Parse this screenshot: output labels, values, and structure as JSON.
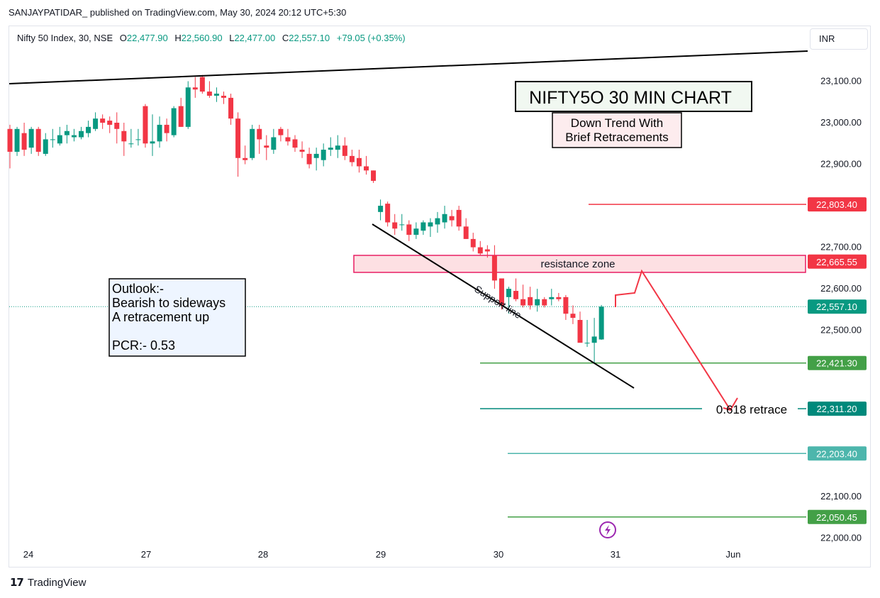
{
  "header": {
    "published": "SANJAYPATIDAR_ published on TradingView.com, May 30, 2024 20:12 UTC+5:30"
  },
  "legend": {
    "symbol": "Nifty 50 Index, 30, NSE",
    "o_label": "O",
    "o": "22,477.90",
    "h_label": "H",
    "h": "22,560.90",
    "l_label": "L",
    "l": "22,477.00",
    "c_label": "C",
    "c": "22,557.10",
    "change": "+79.05 (+0.35%)"
  },
  "currency": "INR",
  "brand": "TradingView",
  "colors": {
    "up": "#089981",
    "down": "#f23645",
    "axis_text": "#131722",
    "resistance_fill": "#fde0e3",
    "resistance_border": "#e91e63"
  },
  "chart_data": {
    "type": "candlestick",
    "symbol": "Nifty 50 Index",
    "interval": "30",
    "y_ticks": [
      "23,100.00",
      "23,000.00",
      "22,900.00",
      "22,700.00",
      "22,600.00",
      "22,500.00",
      "22,100.00",
      "22,000.00"
    ],
    "y_tick_values": [
      23100,
      23000,
      22900,
      22700,
      22600,
      22500,
      22100,
      22000
    ],
    "x_ticks": [
      "24",
      "27",
      "28",
      "29",
      "30",
      "31",
      "Jun"
    ],
    "ylim": [
      21970,
      23210
    ],
    "candles": [
      [
        22985,
        22995,
        22890,
        22930
      ],
      [
        22930,
        22990,
        22920,
        22985
      ],
      [
        22975,
        23000,
        22920,
        22935
      ],
      [
        22940,
        22990,
        22925,
        22985
      ],
      [
        22985,
        22990,
        22920,
        22930
      ],
      [
        22925,
        22975,
        22920,
        22960
      ],
      [
        22960,
        22985,
        22940,
        22960
      ],
      [
        22950,
        22990,
        22945,
        22970
      ],
      [
        22970,
        22995,
        22950,
        22980
      ],
      [
        22965,
        22985,
        22955,
        22970
      ],
      [
        22965,
        22990,
        22960,
        22980
      ],
      [
        22975,
        23005,
        22965,
        22990
      ],
      [
        22985,
        23025,
        22980,
        23010
      ],
      [
        23010,
        23020,
        22985,
        23000
      ],
      [
        23005,
        23015,
        22975,
        22995
      ],
      [
        23000,
        23025,
        22950,
        22985
      ],
      [
        22980,
        23000,
        22920,
        22955
      ],
      [
        22950,
        22985,
        22940,
        22950
      ],
      [
        22960,
        22985,
        22945,
        22960
      ],
      [
        23040,
        23045,
        22940,
        22950
      ],
      [
        22950,
        23020,
        22920,
        22955
      ],
      [
        22955,
        23015,
        22940,
        22995
      ],
      [
        22995,
        23010,
        22955,
        22975
      ],
      [
        22970,
        23040,
        22965,
        23035
      ],
      [
        23040,
        23060,
        22990,
        22990
      ],
      [
        22990,
        23100,
        22985,
        23085
      ],
      [
        23085,
        23110,
        23060,
        23080
      ],
      [
        23110,
        23115,
        23070,
        23075
      ],
      [
        23075,
        23100,
        23060,
        23065
      ],
      [
        23065,
        23085,
        23050,
        23070
      ],
      [
        23065,
        23075,
        23045,
        23060
      ],
      [
        23060,
        23070,
        22995,
        23010
      ],
      [
        23010,
        23025,
        22870,
        22915
      ],
      [
        22915,
        22945,
        22900,
        22910
      ],
      [
        22915,
        22995,
        22910,
        22985
      ],
      [
        22985,
        22995,
        22925,
        22960
      ],
      [
        22945,
        22970,
        22910,
        22940
      ],
      [
        22935,
        22985,
        22925,
        22965
      ],
      [
        22985,
        22990,
        22955,
        22970
      ],
      [
        22965,
        22985,
        22945,
        22955
      ],
      [
        22960,
        22970,
        22930,
        22940
      ],
      [
        22935,
        22955,
        22915,
        22930
      ],
      [
        22925,
        22940,
        22890,
        22900
      ],
      [
        22915,
        22940,
        22885,
        22925
      ],
      [
        22910,
        22950,
        22895,
        22935
      ],
      [
        22935,
        22965,
        22920,
        22940
      ],
      [
        22935,
        22970,
        22915,
        22945
      ],
      [
        22945,
        22965,
        22910,
        22920
      ],
      [
        22920,
        22935,
        22895,
        22905
      ],
      [
        22915,
        22935,
        22880,
        22895
      ],
      [
        22895,
        22920,
        22875,
        22885
      ],
      [
        22885,
        22885,
        22855,
        22860
      ],
      [
        22785,
        22815,
        22765,
        22800
      ],
      [
        22805,
        22810,
        22750,
        22760
      ],
      [
        22760,
        22780,
        22730,
        22745
      ],
      [
        22755,
        22780,
        22740,
        22755
      ],
      [
        22755,
        22765,
        22715,
        22730
      ],
      [
        22730,
        22760,
        22720,
        22745
      ],
      [
        22740,
        22765,
        22730,
        22760
      ],
      [
        22750,
        22770,
        22725,
        22760
      ],
      [
        22755,
        22785,
        22735,
        22770
      ],
      [
        22760,
        22800,
        22745,
        22780
      ],
      [
        22775,
        22790,
        22750,
        22765
      ],
      [
        22790,
        22800,
        22740,
        22750
      ],
      [
        22750,
        22770,
        22720,
        22720
      ],
      [
        22720,
        22735,
        22690,
        22700
      ],
      [
        22700,
        22715,
        22680,
        22685
      ],
      [
        22695,
        22705,
        22675,
        22690
      ],
      [
        22680,
        22705,
        22600,
        22620
      ],
      [
        22625,
        22625,
        22550,
        22560
      ],
      [
        22580,
        22605,
        22540,
        22600
      ],
      [
        22595,
        22625,
        22570,
        22575
      ],
      [
        22575,
        22610,
        22555,
        22560
      ],
      [
        22580,
        22605,
        22550,
        22560
      ],
      [
        22560,
        22600,
        22545,
        22575
      ],
      [
        22575,
        22580,
        22555,
        22560
      ],
      [
        22575,
        22600,
        22560,
        22580
      ],
      [
        22580,
        22590,
        22570,
        22575
      ],
      [
        22580,
        22585,
        22525,
        22540
      ],
      [
        22540,
        22560,
        22515,
        22530
      ],
      [
        22525,
        22545,
        22480,
        22470
      ],
      [
        22470,
        22525,
        22460,
        22470
      ],
      [
        22470,
        22530,
        22420,
        22485
      ],
      [
        22478,
        22561,
        22477,
        22557
      ]
    ],
    "price_levels": [
      {
        "label": "22,803.40",
        "value": 22803.4,
        "color": "#f23645"
      },
      {
        "label": "22,665.55",
        "value": 22665.55,
        "color": "#f23645"
      },
      {
        "label": "22,557.10",
        "value": 22557.1,
        "color": "#089981"
      },
      {
        "label": "22,421.30",
        "value": 22421.3,
        "color": "#43a047"
      },
      {
        "label": "22,311.20",
        "value": 22311.2,
        "color": "#00897b"
      },
      {
        "label": "22,203.40",
        "value": 22203.4,
        "color": "#4db6ac"
      },
      {
        "label": "22,050.45",
        "value": 22050.45,
        "color": "#43a047"
      }
    ],
    "annotations": {
      "title": "NIFTY5O 30 MIN CHART",
      "subtitle_line1": "Down Trend With",
      "subtitle_line2": "Brief Retracements",
      "resistance": "resistance zone",
      "support": "Support line",
      "retrace": "0.618 retrace",
      "outlook_l1": "Outlook:-",
      "outlook_l2": "Bearish to sideways",
      "outlook_l3": "A retracement up",
      "outlook_l4": "PCR:- 0.53"
    }
  }
}
